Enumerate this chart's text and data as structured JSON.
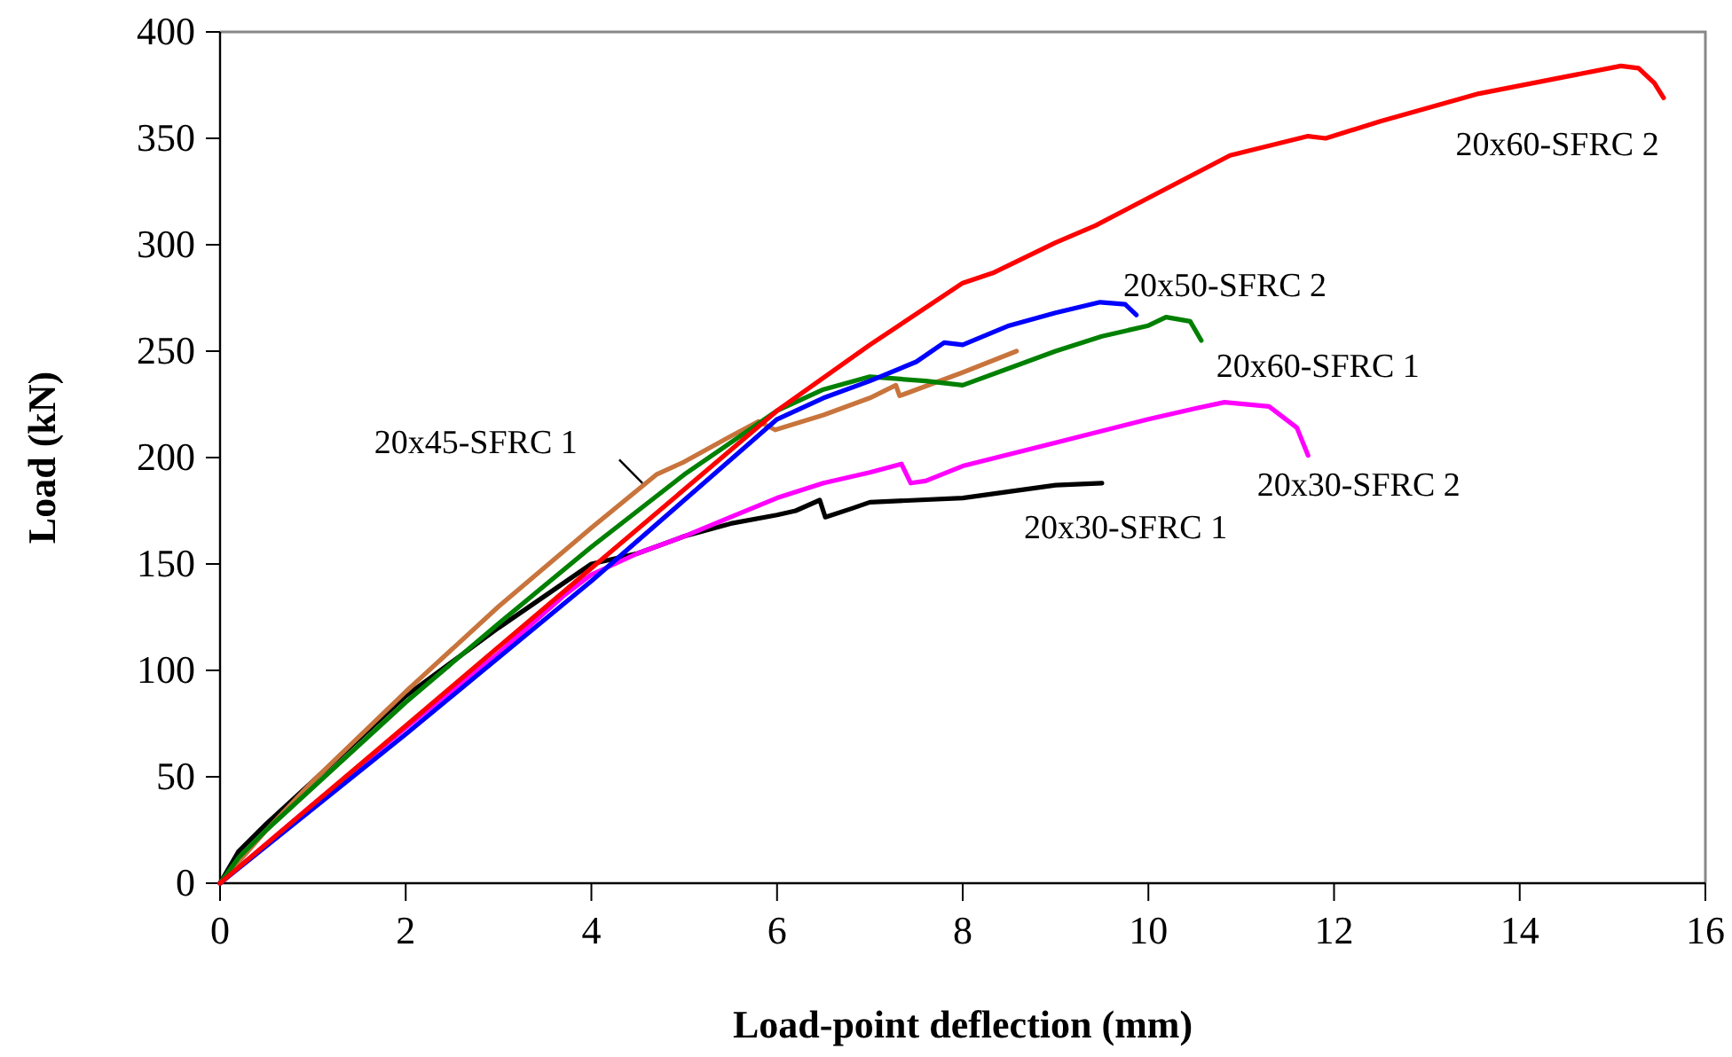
{
  "chart_data": {
    "type": "line",
    "xlabel": "Load-point deflection (mm)",
    "ylabel": "Load (kN)",
    "xlim": [
      0,
      16
    ],
    "xticks": [
      0,
      2,
      4,
      6,
      8,
      10,
      12,
      14,
      16
    ],
    "ylim": [
      0,
      400
    ],
    "yticks": [
      0,
      50,
      100,
      150,
      200,
      250,
      300,
      350,
      400
    ],
    "grid": false,
    "marker": "none",
    "line_style": "solid",
    "series": [
      {
        "name": "20x60-SFRC 2",
        "color": "#ff0000",
        "x": [
          0,
          2,
          4,
          5,
          6,
          7,
          8,
          8.34,
          9,
          9.43,
          10,
          10.88,
          11.72,
          11.91,
          12.5,
          13.56,
          14.5,
          15.09,
          15.28,
          15.45,
          15.55
        ],
        "values": [
          0,
          74,
          148,
          185,
          222,
          253,
          282,
          287,
          301,
          309,
          322,
          342,
          351,
          350,
          358,
          371,
          379,
          384,
          383,
          376,
          369
        ]
      },
      {
        "name": "20x50-SFRC 2",
        "color": "#0000ff",
        "x": [
          0,
          2,
          4,
          5,
          6,
          6.5,
          7,
          7.5,
          7.8,
          8,
          8.5,
          9,
          9.48,
          9.75,
          9.87
        ],
        "values": [
          0,
          70,
          142,
          180,
          218,
          228,
          236,
          245,
          254,
          253,
          262,
          268,
          273,
          272,
          267
        ]
      },
      {
        "name": "20x60-SFRC 1",
        "color": "#008000",
        "x": [
          0,
          0.2,
          0.5,
          1,
          2,
          3,
          4,
          5,
          6,
          6.5,
          7,
          7.3,
          7.6,
          8,
          8.5,
          9,
          9.5,
          10,
          10.19,
          10.45,
          10.57
        ],
        "values": [
          0,
          12,
          25,
          45,
          85,
          122,
          158,
          192,
          222,
          232,
          238,
          237,
          236,
          234,
          242,
          250,
          257,
          262,
          266,
          264,
          255
        ]
      },
      {
        "name": "20x45-SFRC 1",
        "color": "#c8743c",
        "x": [
          0,
          0.5,
          1,
          2,
          3,
          4,
          4.7,
          5,
          5.5,
          5.8,
          5.98,
          6.5,
          7,
          7.28,
          7.32,
          8,
          8.58
        ],
        "values": [
          0,
          25,
          48,
          90,
          130,
          167,
          192,
          198,
          210,
          217,
          213,
          220,
          228,
          234,
          229,
          240,
          250
        ]
      },
      {
        "name": "20x30-SFRC 2",
        "color": "#ff00ff",
        "x": [
          0,
          1,
          2,
          3,
          3.7,
          4,
          4.5,
          5,
          5.5,
          6,
          6.5,
          7,
          7.34,
          7.44,
          7.6,
          8,
          9,
          10,
          10.5,
          10.82,
          11.3,
          11.6,
          11.72
        ],
        "values": [
          0,
          37,
          73,
          108,
          135,
          145,
          155,
          163,
          172,
          181,
          188,
          193,
          197,
          188,
          189,
          196,
          207,
          218,
          223,
          226,
          224,
          214,
          201
        ]
      },
      {
        "name": "20x30-SFRC 1",
        "color": "#000000",
        "x": [
          0,
          0.2,
          0.5,
          1,
          2,
          3,
          4,
          4.5,
          5,
          5.5,
          6,
          6.2,
          6.46,
          6.52,
          6.8,
          7,
          7.5,
          8,
          8.5,
          9,
          9.5
        ],
        "values": [
          0,
          15,
          28,
          48,
          88,
          120,
          150,
          155,
          163,
          169,
          173,
          175,
          180,
          172,
          176,
          179,
          180,
          181,
          184,
          187,
          188
        ]
      }
    ]
  }
}
